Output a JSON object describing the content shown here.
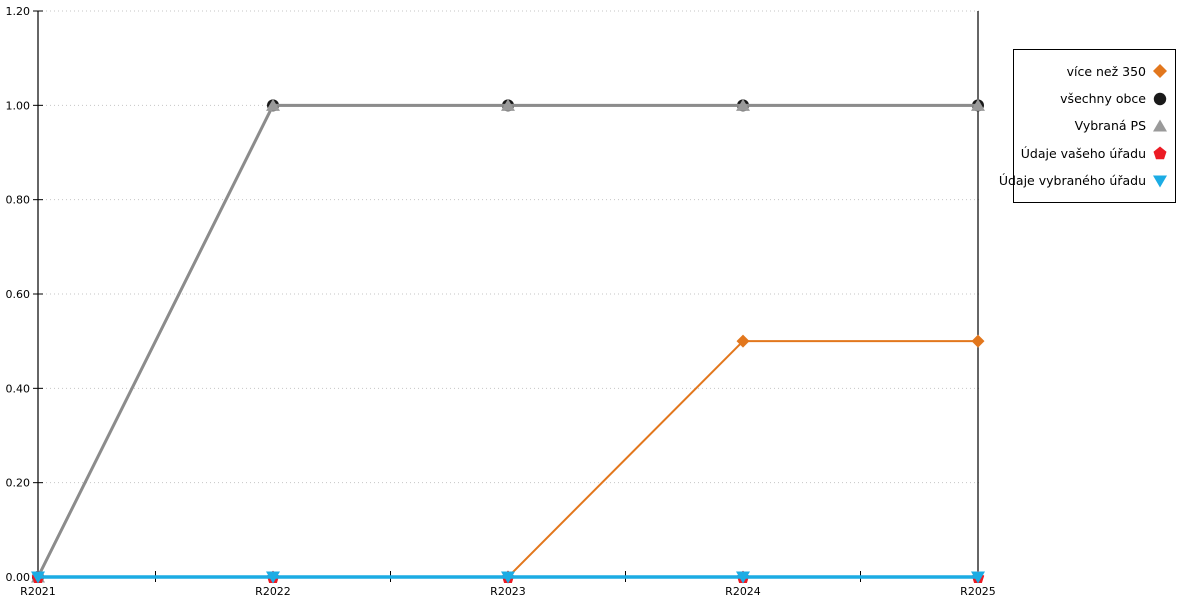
{
  "chart_data": {
    "type": "line",
    "title": "",
    "xlabel": "",
    "ylabel": "",
    "categories": [
      "R2021",
      "R2022",
      "R2023",
      "R2024",
      "R2025"
    ],
    "ylim": [
      0,
      1.2
    ],
    "ytick_values": [
      0,
      0.2,
      0.4,
      0.6,
      0.8,
      1.0,
      1.2
    ],
    "ytick_labels": [
      "0.00",
      "0.20",
      "0.40",
      "0.60",
      "0.80",
      "1.00",
      "1.20"
    ],
    "grid": "horizontal-dotted",
    "grid_color": "#c6c6c6",
    "axis_color": "#000000",
    "legend_position": "right",
    "series": [
      {
        "name": "více než 350",
        "color": "#E2771D",
        "marker": "diamond",
        "line_width": 2,
        "values": [
          null,
          null,
          0,
          0.5,
          0.5
        ]
      },
      {
        "name": "všechny obce",
        "color": "#1A1A1A",
        "marker": "circle",
        "line_width": 2.5,
        "values": [
          0,
          1,
          1,
          1,
          1
        ]
      },
      {
        "name": "Vybraná PS",
        "color": "#8C8C8C",
        "marker": "triangle-up",
        "marker_color": "#9A9A9A",
        "line_width": 3,
        "values": [
          0,
          1,
          1,
          1,
          1
        ]
      },
      {
        "name": "Údaje vašeho úřadu",
        "color": "#EC1B24",
        "marker": "pentagon",
        "line_width": 2,
        "values": [
          0,
          0,
          0,
          0,
          0
        ]
      },
      {
        "name": "Údaje vybraného úřadu",
        "color": "#1CACE4",
        "marker": "triangle-down",
        "line_width": 3.5,
        "values": [
          0,
          0,
          0,
          0,
          0
        ]
      }
    ],
    "annotations": [
      {
        "type": "vline",
        "x": "R2025",
        "color": "#000000"
      }
    ]
  }
}
